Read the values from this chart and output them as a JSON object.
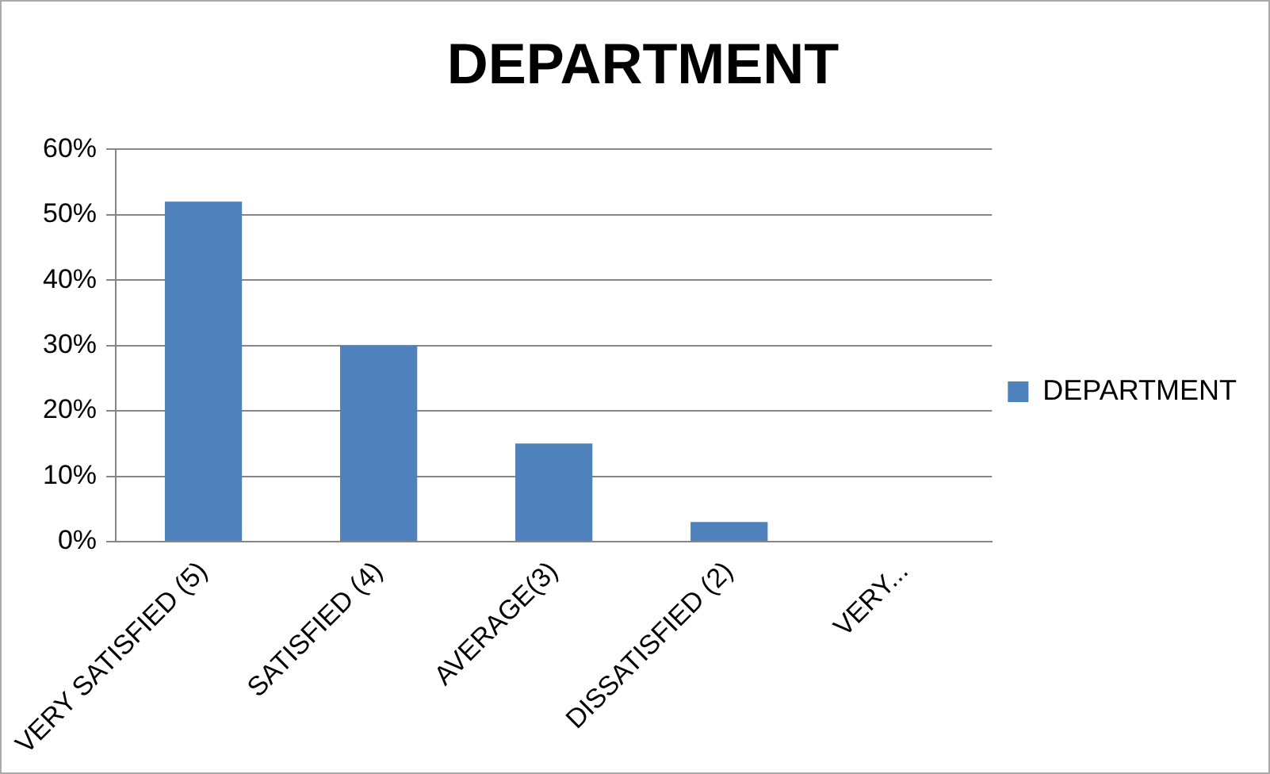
{
  "chart_data": {
    "type": "bar",
    "title": "DEPARTMENT",
    "categories": [
      "VERY SATISFIED (5)",
      "SATISFIED (4)",
      "AVERAGE(3)",
      "DISSATISFIED (2)",
      "VERY..."
    ],
    "series": [
      {
        "name": "DEPARTMENT",
        "color": "#4f81bd",
        "values": [
          52,
          30,
          15,
          3,
          0
        ]
      }
    ],
    "ylim": [
      0,
      60
    ],
    "yticks": [
      {
        "value": 0,
        "label": "0%"
      },
      {
        "value": 10,
        "label": "10%"
      },
      {
        "value": 20,
        "label": "20%"
      },
      {
        "value": 30,
        "label": "30%"
      },
      {
        "value": 40,
        "label": "40%"
      },
      {
        "value": 50,
        "label": "50%"
      },
      {
        "value": 60,
        "label": "60%"
      }
    ],
    "grid": "y",
    "legend": "right"
  }
}
